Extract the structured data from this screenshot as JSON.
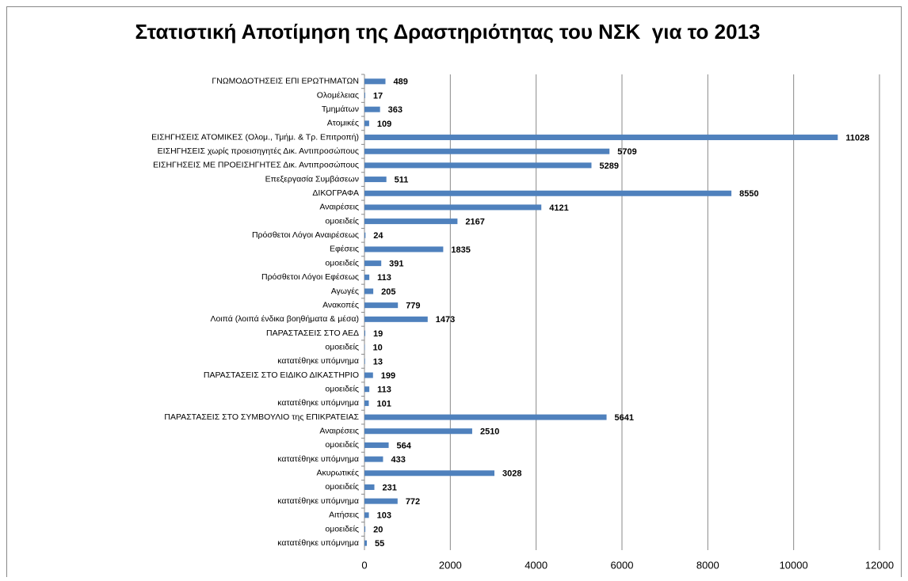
{
  "chart_data": {
    "type": "bar",
    "orientation": "horizontal",
    "title": "Στατιστική Αποτίμηση της Δραστηριότητας του ΝΣΚ  για το 2013",
    "categories": [
      "ΓΝΩΜΟΔΟΤΗΣΕΙΣ ΕΠΙ ΕΡΩΤΗΜΑΤΩΝ",
      "Ολομέλειας",
      "Τμημάτων",
      "Ατομικές",
      "ΕΙΣΗΓΗΣΕΙΣ ΑΤΟΜΙΚΕΣ (Ολομ., Τμήμ. & Τρ. Επιτροπή)",
      "ΕΙΣΗΓΗΣΕΙΣ χωρίς προεισηγητές Δικ. Αντιπροσώπους",
      "ΕΙΣΗΓΗΣΕΙΣ ΜΕ ΠΡΟΕΙΣΗΓΗΤΕΣ Δικ. Αντιπροσώπους",
      "Επεξεργασία Συμβάσεων",
      "ΔΙΚΟΓΡΑΦΑ",
      "Αναιρέσεις",
      "ομοειδείς",
      "Πρόσθετοι Λόγοι Αναιρέσεως",
      "Εφέσεις",
      "ομοειδείς",
      "Πρόσθετοι Λόγοι Εφέσεως",
      "Αγωγές",
      "Ανακοπές",
      "Λοιπά (λοιπά ένδικα βοηθήματα & μέσα)",
      "ΠΑΡΑΣΤΑΣΕΙΣ ΣΤΟ ΑΕΔ",
      "ομοειδείς",
      "κατατέθηκε υπόμνημα",
      "ΠΑΡΑΣΤΑΣΕΙΣ ΣΤΟ ΕΙΔΙΚΟ ΔΙΚΑΣΤΗΡΙΟ",
      "ομοειδείς",
      "κατατέθηκε υπόμνημα",
      "ΠΑΡΑΣΤΑΣΕΙΣ ΣΤΟ ΣΥΜΒΟΥΛΙΟ της ΕΠΙΚΡΑΤΕΙΑΣ",
      "Αναιρέσεις",
      "ομοειδείς",
      "κατατέθηκε υπόμνημα",
      "Ακυρωτικές",
      "ομοειδείς",
      "κατατέθηκε υπόμνημα",
      "Αιτήσεις",
      "ομοειδείς",
      "κατατέθηκε υπόμνημα"
    ],
    "values": [
      489,
      17,
      363,
      109,
      11028,
      5709,
      5289,
      511,
      8550,
      4121,
      2167,
      24,
      1835,
      391,
      113,
      205,
      779,
      1473,
      19,
      10,
      13,
      199,
      113,
      101,
      5641,
      2510,
      564,
      433,
      3028,
      231,
      772,
      103,
      20,
      55
    ],
    "color": "#4f81bd",
    "xlim": [
      0,
      12000
    ],
    "xticks": [
      0,
      2000,
      4000,
      6000,
      8000,
      10000,
      12000
    ],
    "grid": true
  }
}
